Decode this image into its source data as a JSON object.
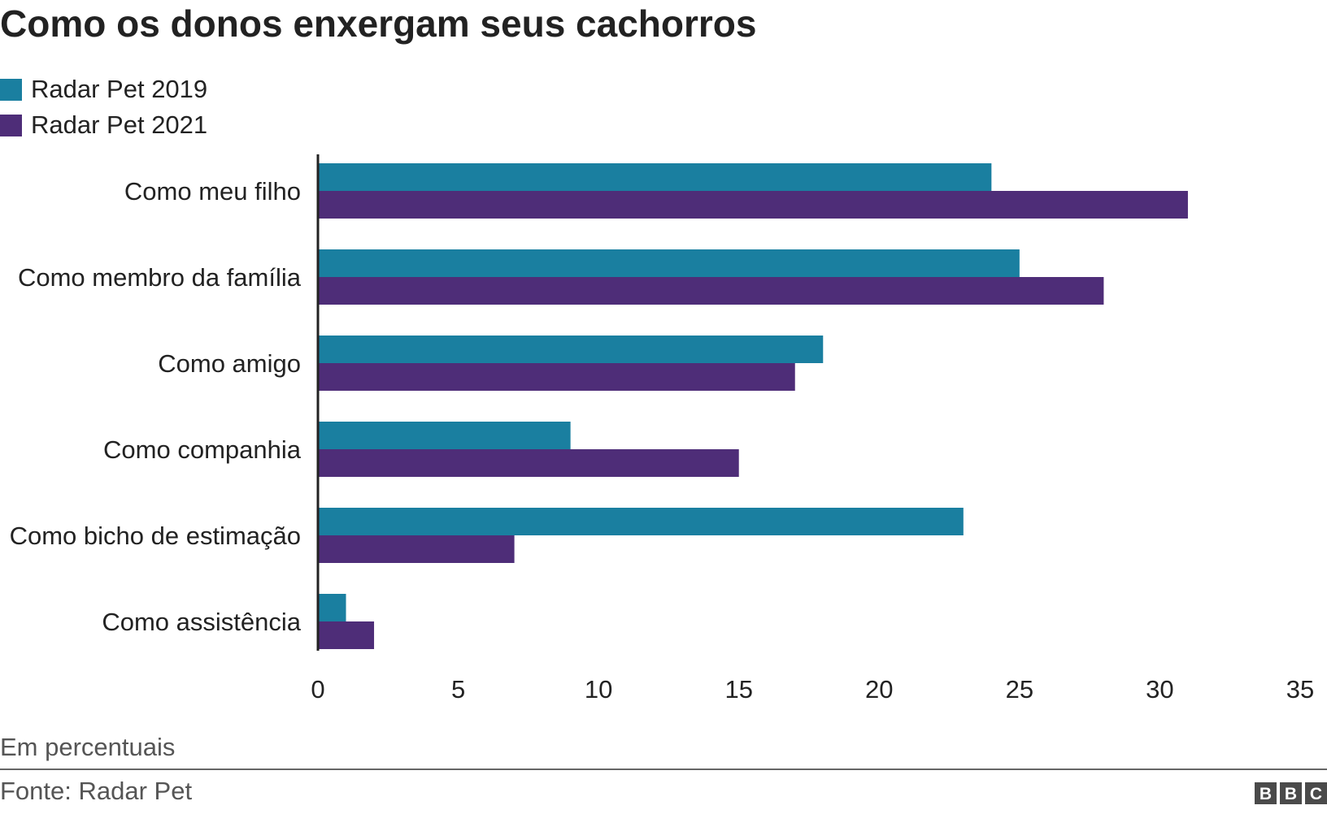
{
  "title": "Como os donos enxergam seus cachorros",
  "legend": [
    {
      "label": "Radar Pet 2019",
      "color": "#1a7fa0"
    },
    {
      "label": "Radar Pet 2021",
      "color": "#4e2d78"
    }
  ],
  "note": "Em percentuais",
  "source": "Fonte: Radar Pet",
  "logo": "BBC",
  "chart_data": {
    "type": "bar",
    "orientation": "horizontal",
    "title": "Como os donos enxergam seus cachorros",
    "categories": [
      "Como meu filho",
      "Como membro da família",
      "Como amigo",
      "Como companhia",
      "Como bicho de estimação",
      "Como assistência"
    ],
    "series": [
      {
        "name": "Radar Pet 2019",
        "color": "#1a7fa0",
        "values": [
          24,
          25,
          18,
          9,
          23,
          1
        ]
      },
      {
        "name": "Radar Pet 2021",
        "color": "#4e2d78",
        "values": [
          31,
          28,
          17,
          15,
          7,
          2
        ]
      }
    ],
    "xlim": [
      0,
      35
    ],
    "xticks": [
      "0",
      "5",
      "10",
      "15",
      "20",
      "25",
      "30",
      "35"
    ],
    "xlabel": "",
    "ylabel": "",
    "grid": false,
    "legend_position": "top-left"
  }
}
